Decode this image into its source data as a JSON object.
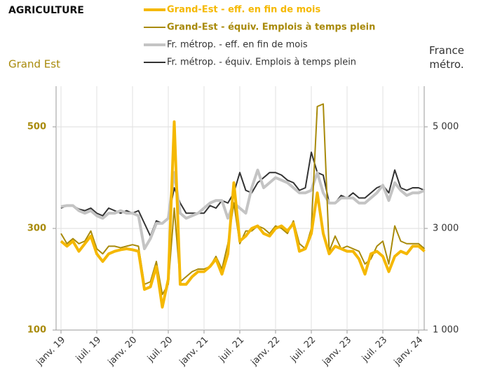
{
  "chart_data": {
    "type": "line",
    "title": "AGRICULTURE",
    "y_label": "Grand Est",
    "y2_label": "France métro.",
    "categories": [
      "janv. 19",
      null,
      null,
      null,
      null,
      null,
      "juil. 19",
      null,
      null,
      null,
      null,
      null,
      "janv. 20",
      null,
      null,
      null,
      null,
      null,
      "juil. 20",
      null,
      null,
      null,
      null,
      null,
      "janv. 21",
      null,
      null,
      null,
      null,
      null,
      "juil. 21",
      null,
      null,
      null,
      null,
      null,
      "janv. 22",
      null,
      null,
      null,
      null,
      null,
      "juil. 22",
      null,
      null,
      null,
      null,
      null,
      "janv. 23",
      null,
      null,
      null,
      null,
      null,
      "juil. 23",
      null,
      null,
      null,
      null,
      null,
      "janv. 24",
      null
    ],
    "ylim": [
      100,
      580
    ],
    "yticks": [
      100,
      300,
      500
    ],
    "y2lim": [
      1000,
      5800
    ],
    "y2ticks": [
      {
        "value": 1000,
        "label": "1 000"
      },
      {
        "value": 3000,
        "label": "3 000"
      },
      {
        "value": 5000,
        "label": "5 000"
      }
    ],
    "grid": true,
    "series": [
      {
        "name": "Grand-Est - eff. en fin de mois",
        "color": "#f5b800",
        "width": 4,
        "values": [
          275,
          265,
          275,
          255,
          270,
          285,
          250,
          235,
          250,
          255,
          258,
          260,
          258,
          255,
          180,
          185,
          225,
          145,
          200,
          510,
          190,
          190,
          205,
          215,
          215,
          225,
          240,
          210,
          250,
          390,
          275,
          285,
          300,
          305,
          290,
          285,
          300,
          305,
          295,
          310,
          255,
          260,
          290,
          370,
          290,
          250,
          265,
          260,
          255,
          255,
          240,
          210,
          250,
          255,
          245,
          215,
          245,
          255,
          250,
          265,
          265,
          255
        ]
      },
      {
        "name": "Grand-Est - équiv. Emplois à temps plein",
        "color": "#a88a0a",
        "width": 2,
        "values": [
          290,
          270,
          280,
          270,
          275,
          295,
          260,
          250,
          265,
          265,
          262,
          265,
          268,
          265,
          190,
          195,
          235,
          170,
          190,
          340,
          195,
          205,
          215,
          220,
          220,
          225,
          245,
          220,
          270,
          350,
          270,
          295,
          295,
          305,
          300,
          290,
          305,
          300,
          290,
          315,
          270,
          260,
          300,
          540,
          545,
          255,
          285,
          260,
          265,
          260,
          255,
          230,
          240,
          265,
          275,
          230,
          305,
          275,
          270,
          270,
          270,
          260
        ]
      },
      {
        "name": "Fr. métrop. - eff. en fin de mois",
        "color": "#c4c4c4",
        "width": 4,
        "axis": "y2",
        "values": [
          3430,
          3450,
          3450,
          3350,
          3300,
          3350,
          3250,
          3200,
          3300,
          3300,
          3350,
          3300,
          3300,
          3250,
          2600,
          2800,
          3100,
          3100,
          3200,
          4100,
          3300,
          3200,
          3250,
          3300,
          3400,
          3500,
          3550,
          3550,
          3200,
          3500,
          3400,
          3300,
          3800,
          4150,
          3800,
          3900,
          4000,
          3950,
          3900,
          3800,
          3700,
          3700,
          3750,
          4100,
          3700,
          3500,
          3500,
          3600,
          3600,
          3600,
          3500,
          3500,
          3600,
          3700,
          3850,
          3550,
          3900,
          3750,
          3650,
          3700,
          3700,
          3750
        ]
      },
      {
        "name": "Fr. métrop.  - équiv. Emplois à temps plein",
        "color": "#333333",
        "width": 2,
        "axis": "y2",
        "values": [
          3400,
          3450,
          3450,
          3380,
          3350,
          3400,
          3300,
          3250,
          3400,
          3350,
          3300,
          3350,
          3300,
          3350,
          3100,
          2850,
          3150,
          3100,
          3200,
          3800,
          3500,
          3300,
          3300,
          3300,
          3300,
          3450,
          3400,
          3550,
          3500,
          3700,
          4100,
          3750,
          3700,
          3900,
          4000,
          4100,
          4100,
          4050,
          3950,
          3900,
          3750,
          3800,
          4500,
          4100,
          4050,
          3500,
          3500,
          3650,
          3600,
          3700,
          3600,
          3600,
          3700,
          3800,
          3850,
          3700,
          4150,
          3800,
          3750,
          3800,
          3800,
          3750
        ]
      }
    ]
  }
}
